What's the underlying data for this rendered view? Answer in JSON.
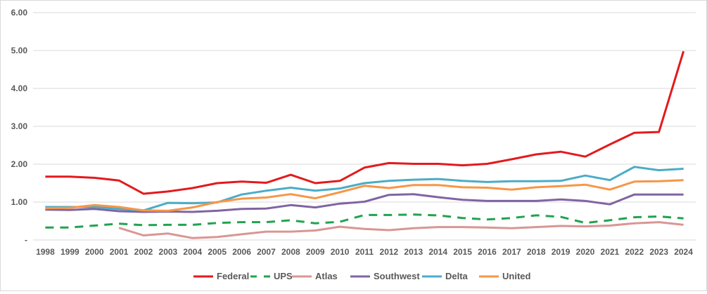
{
  "chart_data": {
    "type": "line",
    "title": "",
    "xlabel": "",
    "ylabel": "",
    "ylim": [
      0,
      6
    ],
    "y_ticks": [
      "-",
      "1.00",
      "2.00",
      "3.00",
      "4.00",
      "5.00",
      "6.00"
    ],
    "grid": true,
    "legend_position": "bottom",
    "categories": [
      "1998",
      "1999",
      "2000",
      "2001",
      "2002",
      "2003",
      "2004",
      "2005",
      "2006",
      "2007",
      "2008",
      "2009",
      "2010",
      "2011",
      "2012",
      "2013",
      "2014",
      "2015",
      "2016",
      "2017",
      "2018",
      "2019",
      "2020",
      "2021",
      "2022",
      "2023",
      "2024"
    ],
    "series": [
      {
        "name": "Federal",
        "color": "#e31a1c",
        "dash": false,
        "values": [
          1.67,
          1.67,
          1.64,
          1.57,
          1.22,
          1.28,
          1.37,
          1.5,
          1.54,
          1.51,
          1.72,
          1.5,
          1.56,
          1.91,
          2.03,
          2.01,
          2.01,
          1.97,
          2.01,
          2.13,
          2.26,
          2.33,
          2.2,
          2.52,
          2.83,
          2.85,
          4.98
        ]
      },
      {
        "name": "UPS",
        "color": "#22a34e",
        "dash": true,
        "values": [
          0.33,
          0.33,
          0.38,
          0.43,
          0.39,
          0.4,
          0.4,
          0.45,
          0.47,
          0.47,
          0.52,
          0.44,
          0.48,
          0.66,
          0.66,
          0.67,
          0.65,
          0.58,
          0.54,
          0.58,
          0.65,
          0.61,
          0.45,
          0.52,
          0.6,
          0.62,
          0.57
        ]
      },
      {
        "name": "Atlas",
        "color": "#d99694",
        "dash": false,
        "values": [
          null,
          null,
          null,
          0.32,
          0.12,
          0.17,
          0.05,
          0.08,
          0.15,
          0.22,
          0.22,
          0.25,
          0.35,
          0.29,
          0.26,
          0.31,
          0.34,
          0.34,
          0.33,
          0.31,
          0.34,
          0.37,
          0.36,
          0.38,
          0.44,
          0.47,
          0.4
        ]
      },
      {
        "name": "Southwest",
        "color": "#8064a2",
        "dash": false,
        "values": [
          0.8,
          0.79,
          0.82,
          0.76,
          0.74,
          0.75,
          0.74,
          0.77,
          0.82,
          0.83,
          0.92,
          0.86,
          0.96,
          1.01,
          1.19,
          1.21,
          1.13,
          1.06,
          1.03,
          1.03,
          1.03,
          1.07,
          1.03,
          0.94,
          1.2,
          1.2,
          1.2
        ]
      },
      {
        "name": "Delta",
        "color": "#4bacc6",
        "dash": false,
        "values": [
          0.87,
          0.87,
          0.87,
          0.82,
          0.78,
          0.98,
          0.97,
          0.99,
          1.2,
          1.3,
          1.38,
          1.3,
          1.36,
          1.5,
          1.56,
          1.59,
          1.61,
          1.56,
          1.53,
          1.55,
          1.55,
          1.56,
          1.7,
          1.58,
          1.93,
          1.84,
          1.88
        ]
      },
      {
        "name": "United",
        "color": "#f79646",
        "dash": false,
        "values": [
          0.84,
          0.85,
          0.92,
          0.87,
          0.78,
          0.77,
          0.86,
          1.0,
          1.09,
          1.12,
          1.21,
          1.1,
          1.26,
          1.43,
          1.37,
          1.45,
          1.45,
          1.39,
          1.38,
          1.33,
          1.39,
          1.42,
          1.46,
          1.33,
          1.54,
          1.55,
          1.58
        ]
      }
    ]
  }
}
